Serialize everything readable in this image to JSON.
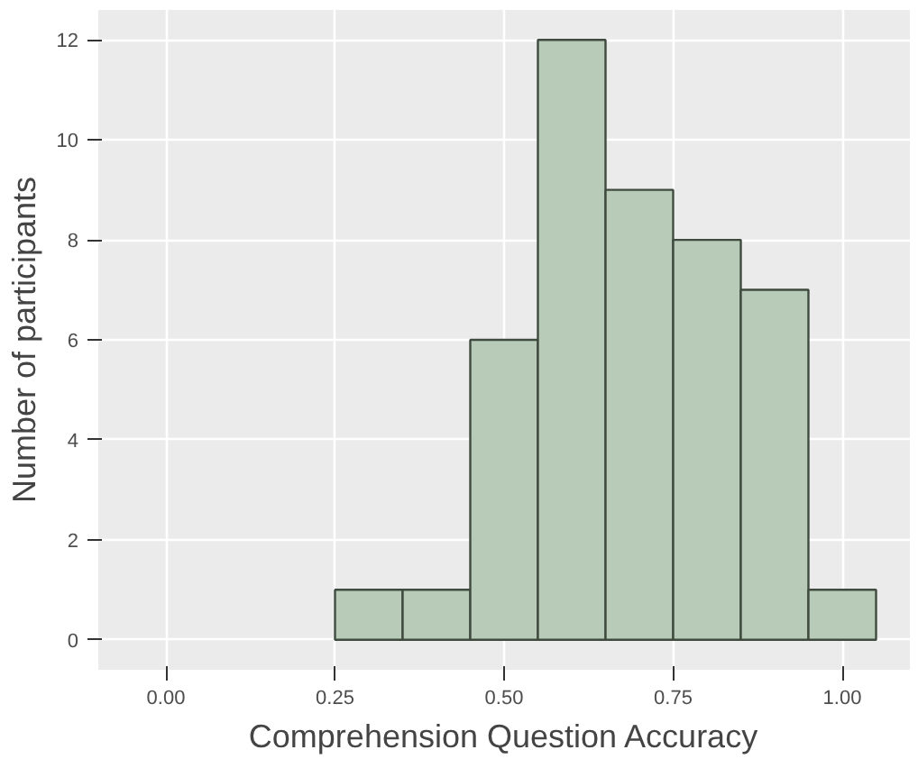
{
  "chart_data": {
    "type": "histogram",
    "xlabel": "Comprehension Question Accuracy",
    "ylabel": "Number of participants",
    "bins": [
      0.25,
      0.35,
      0.45,
      0.55,
      0.65,
      0.75,
      0.85,
      0.95,
      1.05
    ],
    "values": [
      1,
      1,
      6,
      12,
      9,
      8,
      7,
      1
    ],
    "color": "#b8cab8",
    "xlim": [
      -0.1,
      1.1
    ],
    "xticks": [
      {
        "value": 0,
        "label": "0.00"
      },
      0.25,
      {
        "value": 0.5,
        "label": "0.50"
      },
      0.75,
      {
        "value": 1,
        "label": "1.00"
      }
    ],
    "ylim": [
      -0.6,
      12.6
    ],
    "yticks": [
      0,
      2,
      4,
      6,
      8,
      10,
      12
    ],
    "grid": true
  }
}
